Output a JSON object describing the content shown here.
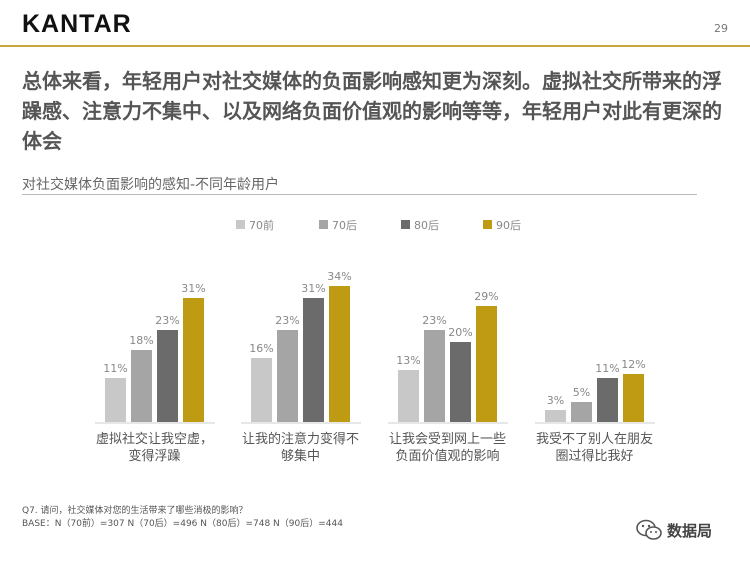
{
  "brand": "KANTAR",
  "page_number": "29",
  "headline": "总体来看，年轻用户对社交媒体的负面影响感知更为深刻。虚拟社交所带来的浮躁感、注意力不集中、以及网络负面价值观的影响等等，年轻用户对此有更深的体会",
  "chart_subtitle": "对社交媒体负面影响的感知-不同年龄用户",
  "footnote": {
    "question": "Q7. 请问，社交媒体对您的生活带来了哪些消极的影响？",
    "base": "BASE：N（70前）=307    N（70后）=496   N（80后）=748   N（90后）=444"
  },
  "watermark": "数据局",
  "colors": {
    "s70q": "#c8c8c8",
    "s70h": "#a5a5a5",
    "s80h": "#6b6b6b",
    "s90h": "#bf9b14",
    "accent": "#c8a83e"
  },
  "chart_data": {
    "type": "bar",
    "categories": [
      [
        "虚拟社交让我空虚，",
        "变得浮躁"
      ],
      [
        "让我的注意力变得不",
        "够集中"
      ],
      [
        "让我会受到网上一些",
        "负面价值观的影响"
      ],
      [
        "我受不了别人在朋友",
        "圈过得比我好"
      ]
    ],
    "series": [
      {
        "name": "70前",
        "values": [
          11,
          16,
          13,
          3
        ]
      },
      {
        "name": "70后",
        "values": [
          18,
          23,
          23,
          5
        ]
      },
      {
        "name": "80后",
        "values": [
          23,
          31,
          20,
          11
        ]
      },
      {
        "name": "90后",
        "values": [
          31,
          34,
          29,
          12
        ]
      }
    ],
    "unit": "%",
    "legend_position": "top",
    "ylim": [
      0,
      35
    ]
  }
}
